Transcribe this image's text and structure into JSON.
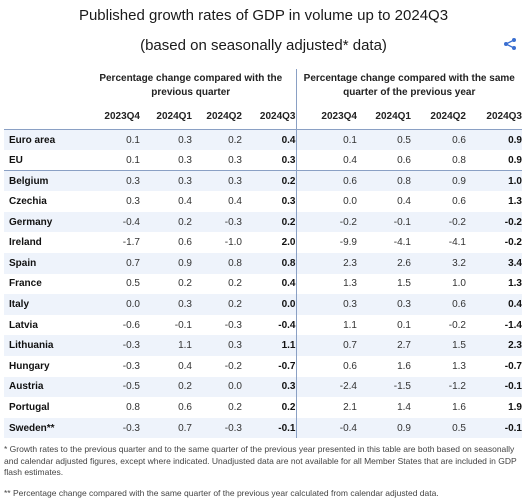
{
  "title": "Published growth rates of GDP in volume up to 2024Q3",
  "subtitle": "(based on seasonally adjusted* data)",
  "group_headers": {
    "qoq": "Percentage change compared with the previous quarter",
    "yoy": "Percentage change compared with the same quarter of the previous year"
  },
  "columns": [
    "2023Q4",
    "2024Q1",
    "2024Q2",
    "2024Q3",
    "2023Q4",
    "2024Q1",
    "2024Q2",
    "2024Q3"
  ],
  "rows": [
    {
      "country": "Euro area",
      "values": [
        "0.1",
        "0.3",
        "0.2",
        "0.4",
        "0.1",
        "0.5",
        "0.6",
        "0.9"
      ]
    },
    {
      "country": "EU",
      "values": [
        "0.1",
        "0.3",
        "0.3",
        "0.3",
        "0.4",
        "0.6",
        "0.8",
        "0.9"
      ]
    },
    {
      "country": "Belgium",
      "values": [
        "0.3",
        "0.3",
        "0.3",
        "0.2",
        "0.6",
        "0.8",
        "0.9",
        "1.0"
      ]
    },
    {
      "country": "Czechia",
      "values": [
        "0.3",
        "0.4",
        "0.4",
        "0.3",
        "0.0",
        "0.4",
        "0.6",
        "1.3"
      ]
    },
    {
      "country": "Germany",
      "values": [
        "-0.4",
        "0.2",
        "-0.3",
        "0.2",
        "-0.2",
        "-0.1",
        "-0.2",
        "-0.2"
      ]
    },
    {
      "country": "Ireland",
      "values": [
        "-1.7",
        "0.6",
        "-1.0",
        "2.0",
        "-9.9",
        "-4.1",
        "-4.1",
        "-0.2"
      ]
    },
    {
      "country": "Spain",
      "values": [
        "0.7",
        "0.9",
        "0.8",
        "0.8",
        "2.3",
        "2.6",
        "3.2",
        "3.4"
      ]
    },
    {
      "country": "France",
      "values": [
        "0.5",
        "0.2",
        "0.2",
        "0.4",
        "1.3",
        "1.5",
        "1.0",
        "1.3"
      ]
    },
    {
      "country": "Italy",
      "values": [
        "0.0",
        "0.3",
        "0.2",
        "0.0",
        "0.3",
        "0.3",
        "0.6",
        "0.4"
      ]
    },
    {
      "country": "Latvia",
      "values": [
        "-0.6",
        "-0.1",
        "-0.3",
        "-0.4",
        "1.1",
        "0.1",
        "-0.2",
        "-1.4"
      ]
    },
    {
      "country": "Lithuania",
      "values": [
        "-0.3",
        "1.1",
        "0.3",
        "1.1",
        "0.7",
        "2.7",
        "1.5",
        "2.3"
      ]
    },
    {
      "country": "Hungary",
      "values": [
        "-0.3",
        "0.4",
        "-0.2",
        "-0.7",
        "0.6",
        "1.6",
        "1.3",
        "-0.7"
      ]
    },
    {
      "country": "Austria",
      "values": [
        "-0.5",
        "0.2",
        "0.0",
        "0.3",
        "-2.4",
        "-1.5",
        "-1.2",
        "-0.1"
      ]
    },
    {
      "country": "Portugal",
      "values": [
        "0.8",
        "0.6",
        "0.2",
        "0.2",
        "2.1",
        "1.4",
        "1.6",
        "1.9"
      ]
    },
    {
      "country": "Sweden**",
      "values": [
        "-0.3",
        "0.7",
        "-0.3",
        "-0.1",
        "-0.4",
        "0.9",
        "0.5",
        "-0.1"
      ]
    }
  ],
  "notes": {
    "note1": "*  Growth rates to the previous quarter and to the same quarter of the previous year presented in this table are both based on seasonally and calendar adjusted figures, except where indicated. Unadjusted data are not available for all Member States that are included in GDP flash estimates.",
    "note2": "**  Percentage change compared with the same quarter of the previous year calculated from calendar adjusted data."
  },
  "icons": {
    "share": "share-icon"
  },
  "colors": {
    "row_stripe": "#eef3fb",
    "rule": "#8aa0c4",
    "share": "#3b6fd1"
  }
}
